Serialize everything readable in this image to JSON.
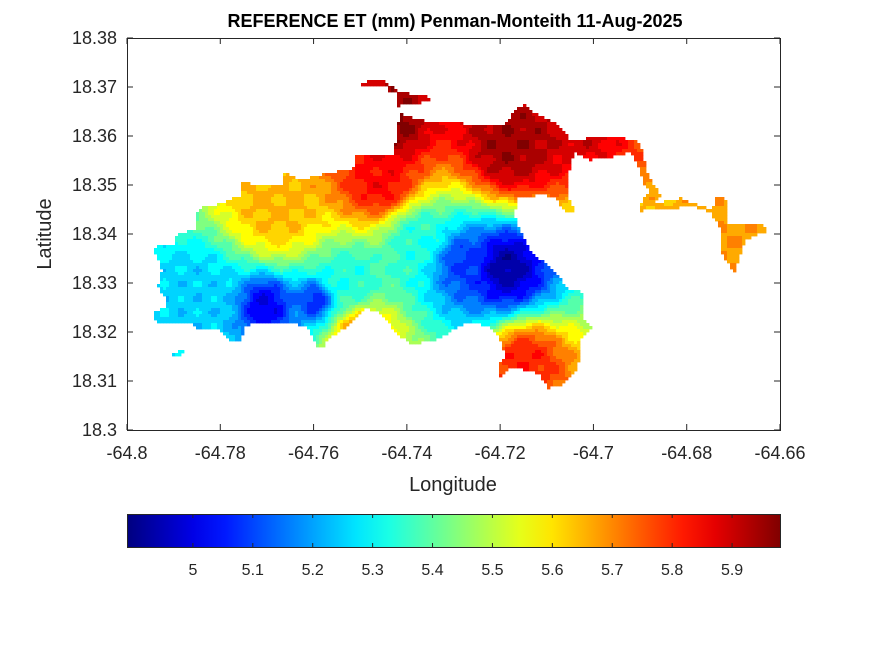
{
  "chart_data": {
    "type": "heatmap",
    "title": "REFERENCE ET (mm) Penman-Monteith 11-Aug-2025",
    "xlabel": "Longitude",
    "ylabel": "Latitude",
    "xlim": [
      -64.8,
      -64.66
    ],
    "ylim": [
      18.3,
      18.38
    ],
    "x_ticks": [
      -64.8,
      -64.78,
      -64.76,
      -64.74,
      -64.72,
      -64.7,
      -64.68,
      -64.66
    ],
    "x_tick_labels": [
      "-64.8",
      "-64.78",
      "-64.76",
      "-64.74",
      "-64.72",
      "-64.7",
      "-64.68",
      "-64.66"
    ],
    "y_ticks": [
      18.3,
      18.31,
      18.32,
      18.33,
      18.34,
      18.35,
      18.36,
      18.37,
      18.38
    ],
    "y_tick_labels": [
      "18.3",
      "18.31",
      "18.32",
      "18.33",
      "18.34",
      "18.35",
      "18.36",
      "18.37",
      "18.38"
    ],
    "colormap": "jet",
    "colorbar": {
      "orientation": "horizontal",
      "placement": "below",
      "range": [
        4.89,
        5.98
      ],
      "ticks": [
        5,
        5.1,
        5.2,
        5.3,
        5.4,
        5.5,
        5.6,
        5.7,
        5.8,
        5.9
      ],
      "tick_labels": [
        "5",
        "5.1",
        "5.2",
        "5.3",
        "5.4",
        "5.5",
        "5.6",
        "5.7",
        "5.8",
        "5.9"
      ]
    },
    "grid": false,
    "hotspots": [
      {
        "lon": -64.719,
        "lat": 18.3335,
        "value": 4.92,
        "spread": 0.0045
      },
      {
        "lon": -64.728,
        "lat": 18.3345,
        "value": 5.08,
        "spread": 0.005
      },
      {
        "lon": -64.7705,
        "lat": 18.3255,
        "value": 5.0,
        "spread": 0.0035
      },
      {
        "lon": -64.7595,
        "lat": 18.3265,
        "value": 5.05,
        "spread": 0.0028
      },
      {
        "lon": -64.785,
        "lat": 18.3275,
        "value": 5.25,
        "spread": 0.006
      },
      {
        "lon": -64.752,
        "lat": 18.331,
        "value": 5.33,
        "spread": 0.005
      },
      {
        "lon": -64.738,
        "lat": 18.3395,
        "value": 5.33,
        "spread": 0.006
      },
      {
        "lon": -64.745,
        "lat": 18.35,
        "value": 5.85,
        "spread": 0.006
      },
      {
        "lon": -64.743,
        "lat": 18.362,
        "value": 5.97,
        "spread": 0.005
      },
      {
        "lon": -64.718,
        "lat": 18.358,
        "value": 5.95,
        "spread": 0.006
      },
      {
        "lon": -64.768,
        "lat": 18.3455,
        "value": 5.65,
        "spread": 0.006
      },
      {
        "lon": -64.715,
        "lat": 18.314,
        "value": 5.82,
        "spread": 0.004
      },
      {
        "lon": -64.7495,
        "lat": 18.3195,
        "value": 5.72,
        "spread": 0.004
      },
      {
        "lon": -64.671,
        "lat": 18.338,
        "value": 5.68,
        "spread": 0.003
      },
      {
        "lon": -64.703,
        "lat": 18.361,
        "value": 5.9,
        "spread": 0.003
      }
    ]
  }
}
